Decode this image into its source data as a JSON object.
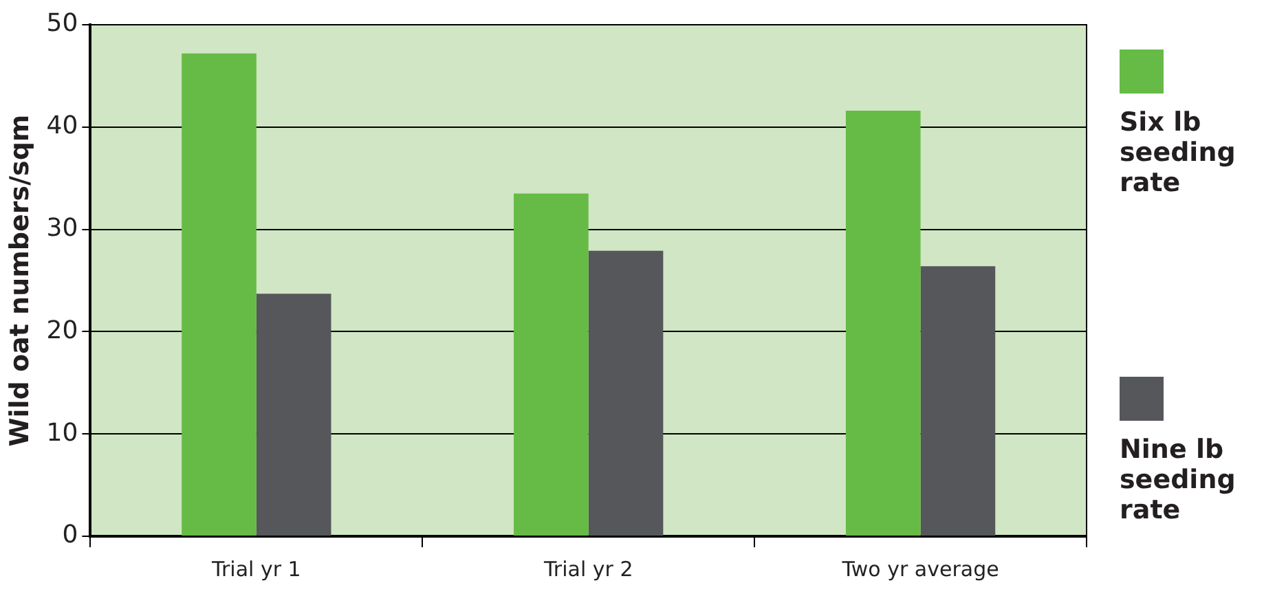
{
  "chart_data": {
    "type": "bar",
    "ylabel": "Wild oat numbers/sqm",
    "categories": [
      "Trial yr 1",
      "Trial yr 2",
      "Two yr average"
    ],
    "series": [
      {
        "name": "Six lb seeding rate",
        "color": "#66bb46",
        "values": [
          47.2,
          33.5,
          41.6
        ]
      },
      {
        "name": "Nine lb seeding rate",
        "color": "#55575a",
        "values": [
          23.7,
          27.9,
          26.4
        ]
      }
    ],
    "ylim": [
      0,
      50
    ],
    "yticks": [
      0,
      10,
      20,
      30,
      40,
      50
    ],
    "grid": "y",
    "legend": "right"
  }
}
